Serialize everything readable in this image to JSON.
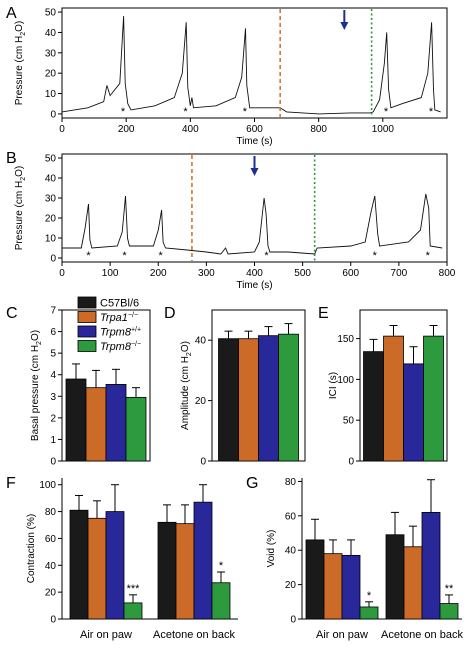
{
  "legend": [
    {
      "label": "C57Bl/6",
      "italic": false,
      "sup": "",
      "color": "#1a1a1a"
    },
    {
      "label": "Trpa1",
      "italic": true,
      "sup": "−/−",
      "color": "#cc6a28"
    },
    {
      "label": "Trpm8",
      "italic": true,
      "sup": "+/+",
      "color": "#28289a"
    },
    {
      "label": "Trpm8",
      "italic": true,
      "sup": "−/−",
      "color": "#2e9a3e"
    }
  ],
  "chart_data": [
    {
      "panel": "A",
      "type": "line",
      "xlabel": "Time (s)",
      "ylabel": "Pressure (cm H2O)",
      "xlim": [
        0,
        1200
      ],
      "ylim": [
        -2,
        52
      ],
      "xticks": [
        0,
        200,
        400,
        600,
        800,
        1000
      ],
      "yticks": [
        0,
        10,
        20,
        30,
        40,
        50
      ],
      "vlines": [
        {
          "x": 680,
          "color": "#d07a2a",
          "style": "dashed"
        },
        {
          "x": 965,
          "color": "#2a9a3a",
          "style": "dotted"
        }
      ],
      "arrow_x": 880,
      "peak_markers": [
        190,
        385,
        570,
        1010,
        1150
      ],
      "trace": [
        [
          0,
          1
        ],
        [
          80,
          3
        ],
        [
          130,
          6
        ],
        [
          140,
          14
        ],
        [
          150,
          9
        ],
        [
          180,
          15
        ],
        [
          192,
          48
        ],
        [
          197,
          15
        ],
        [
          205,
          5
        ],
        [
          215,
          2
        ],
        [
          290,
          4
        ],
        [
          350,
          8
        ],
        [
          375,
          20
        ],
        [
          387,
          45
        ],
        [
          392,
          13
        ],
        [
          400,
          4
        ],
        [
          405,
          8
        ],
        [
          410,
          3
        ],
        [
          480,
          4
        ],
        [
          540,
          8
        ],
        [
          560,
          18
        ],
        [
          572,
          42
        ],
        [
          576,
          14
        ],
        [
          585,
          3
        ],
        [
          640,
          3
        ],
        [
          680,
          3
        ],
        [
          700,
          1
        ],
        [
          800,
          0
        ],
        [
          900,
          0.5
        ],
        [
          960,
          0.5
        ],
        [
          970,
          1
        ],
        [
          990,
          7
        ],
        [
          1005,
          25
        ],
        [
          1012,
          40
        ],
        [
          1018,
          12
        ],
        [
          1025,
          3
        ],
        [
          1060,
          5
        ],
        [
          1120,
          8
        ],
        [
          1140,
          20
        ],
        [
          1152,
          45
        ],
        [
          1158,
          12
        ],
        [
          1162,
          2
        ],
        [
          1180,
          1
        ]
      ]
    },
    {
      "panel": "B",
      "type": "line",
      "xlabel": "Time (s)",
      "ylabel": "Pressure (cm H2O)",
      "xlim": [
        0,
        800
      ],
      "ylim": [
        -2,
        52
      ],
      "xticks": [
        0,
        100,
        200,
        300,
        400,
        500,
        600,
        700,
        800
      ],
      "yticks": [
        0,
        10,
        20,
        30,
        40,
        50
      ],
      "vlines": [
        {
          "x": 270,
          "color": "#d07a2a",
          "style": "dashed"
        },
        {
          "x": 525,
          "color": "#2a9a3a",
          "style": "dotted"
        }
      ],
      "arrow_x": 400,
      "peak_markers": [
        55,
        130,
        205,
        425,
        650,
        760
      ],
      "trace": [
        [
          0,
          5
        ],
        [
          40,
          5
        ],
        [
          48,
          15
        ],
        [
          55,
          27
        ],
        [
          58,
          9
        ],
        [
          62,
          5
        ],
        [
          115,
          6
        ],
        [
          125,
          13
        ],
        [
          132,
          31
        ],
        [
          136,
          10
        ],
        [
          140,
          6
        ],
        [
          190,
          6
        ],
        [
          200,
          14
        ],
        [
          207,
          24
        ],
        [
          210,
          8
        ],
        [
          215,
          5
        ],
        [
          260,
          4
        ],
        [
          300,
          3
        ],
        [
          330,
          2
        ],
        [
          340,
          5
        ],
        [
          345,
          2
        ],
        [
          400,
          3
        ],
        [
          410,
          8
        ],
        [
          420,
          30
        ],
        [
          424,
          22
        ],
        [
          428,
          6
        ],
        [
          432,
          3
        ],
        [
          470,
          3
        ],
        [
          525,
          2
        ],
        [
          530,
          5
        ],
        [
          600,
          6
        ],
        [
          630,
          8
        ],
        [
          642,
          23
        ],
        [
          650,
          31
        ],
        [
          656,
          12
        ],
        [
          660,
          6
        ],
        [
          720,
          8
        ],
        [
          745,
          14
        ],
        [
          756,
          32
        ],
        [
          762,
          25
        ],
        [
          765,
          6
        ],
        [
          790,
          5
        ]
      ]
    },
    {
      "panel": "C",
      "type": "bar",
      "categories": [
        "C57Bl/6",
        "Trpa1−/−",
        "Trpm8+/+",
        "Trpm8−/−"
      ],
      "values": [
        3.8,
        3.4,
        3.55,
        2.95
      ],
      "errors": [
        0.7,
        0.8,
        0.7,
        0.45
      ],
      "ylabel": "Basal pressure (cm H2O)",
      "ylim": [
        0,
        7
      ],
      "yticks": [
        0,
        1,
        2,
        3,
        4,
        5,
        6,
        7
      ]
    },
    {
      "panel": "D",
      "type": "bar",
      "categories": [
        "C57Bl/6",
        "Trpa1−/−",
        "Trpm8+/+",
        "Trpm8−/−"
      ],
      "values": [
        40.5,
        40.5,
        41.5,
        42
      ],
      "errors": [
        2.5,
        2.5,
        3,
        3.5
      ],
      "ylabel": "Amplitude (cm H2O)",
      "ylim": [
        0,
        50
      ],
      "yticks": [
        0,
        20,
        40
      ]
    },
    {
      "panel": "E",
      "type": "bar",
      "categories": [
        "C57Bl/6",
        "Trpa1−/−",
        "Trpm8+/+",
        "Trpm8−/−"
      ],
      "values": [
        134,
        153,
        119,
        153
      ],
      "errors": [
        15,
        13,
        21,
        13
      ],
      "ylabel": "ICI (s)",
      "ylim": [
        0,
        185
      ],
      "yticks": [
        0,
        50,
        100,
        150
      ]
    },
    {
      "panel": "F",
      "type": "bar",
      "groups": [
        "Air on paw",
        "Acetone on back"
      ],
      "series": [
        {
          "values": [
            81,
            72
          ],
          "errors": [
            11,
            13
          ]
        },
        {
          "values": [
            75,
            71
          ],
          "errors": [
            13,
            14
          ]
        },
        {
          "values": [
            80,
            87
          ],
          "errors": [
            20,
            13
          ]
        },
        {
          "values": [
            12,
            27
          ],
          "errors": [
            6,
            8
          ]
        }
      ],
      "sig": [
        "***",
        "*"
      ],
      "ylabel": "Contraction (%)",
      "ylim": [
        0,
        105
      ],
      "yticks": [
        0,
        20,
        40,
        60,
        80,
        100
      ]
    },
    {
      "panel": "G",
      "type": "bar",
      "groups": [
        "Air on paw",
        "Acetone on back"
      ],
      "series": [
        {
          "values": [
            46,
            49
          ],
          "errors": [
            12,
            13
          ]
        },
        {
          "values": [
            38,
            42
          ],
          "errors": [
            8,
            12
          ]
        },
        {
          "values": [
            37,
            62
          ],
          "errors": [
            9,
            19
          ]
        },
        {
          "values": [
            7,
            9
          ],
          "errors": [
            3,
            5
          ]
        }
      ],
      "sig": [
        "*",
        "**"
      ],
      "ylabel": "Void (%)",
      "ylim": [
        0,
        82
      ],
      "yticks": [
        0,
        20,
        40,
        60,
        80
      ]
    }
  ]
}
